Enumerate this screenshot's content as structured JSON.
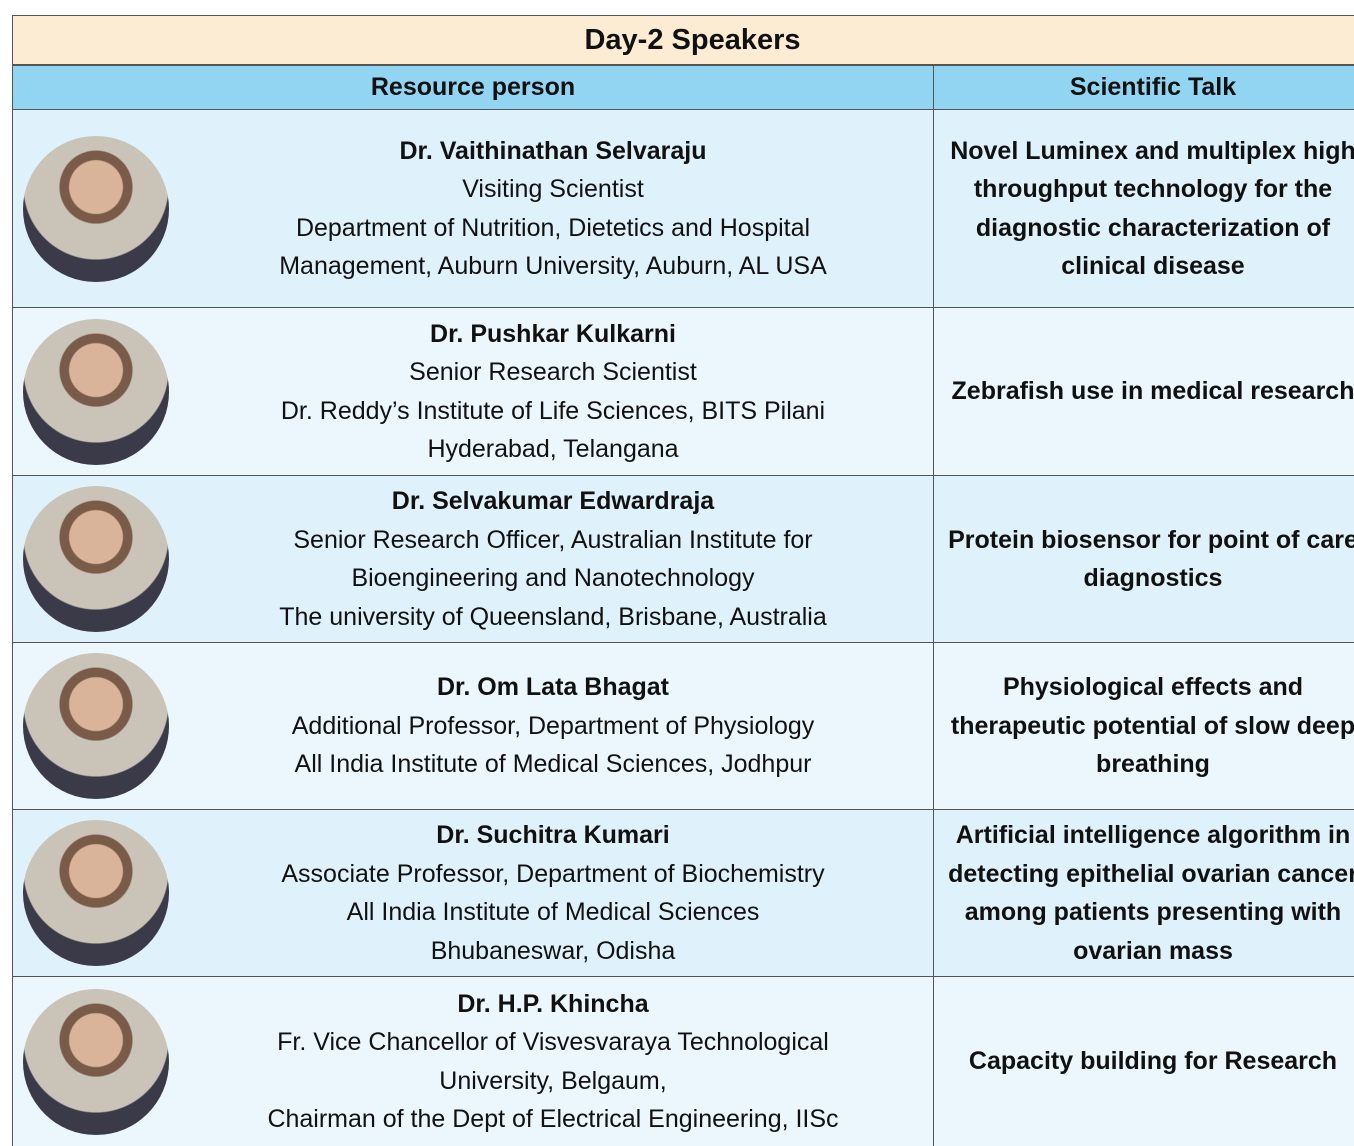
{
  "header": {
    "title": "Day-2 Speakers"
  },
  "table": {
    "columns": [
      "Resource person",
      "Scientific Talk"
    ],
    "rows": [
      {
        "name": "Dr. Vaithinathan Selvaraju",
        "lines": [
          "Visiting Scientist",
          "Department of Nutrition, Dietetics and Hospital",
          "Management, Auburn University, Auburn, AL USA"
        ],
        "talk": "Novel Luminex and multiplex high throughput technology for the diagnostic characterization of clinical disease"
      },
      {
        "name": "Dr. Pushkar Kulkarni",
        "lines": [
          "Senior Research Scientist",
          "Dr. Reddy’s Institute of Life Sciences, BITS Pilani",
          "Hyderabad, Telangana"
        ],
        "talk": "Zebrafish use in medical research"
      },
      {
        "name": "Dr. Selvakumar Edwardraja",
        "lines": [
          "Senior Research Officer, Australian Institute for",
          "Bioengineering and Nanotechnology",
          "The university of Queensland, Brisbane, Australia"
        ],
        "talk": "Protein biosensor for point of care diagnostics"
      },
      {
        "name": "Dr. Om Lata Bhagat",
        "lines": [
          "Additional Professor, Department of Physiology",
          "All India Institute of Medical Sciences, Jodhpur"
        ],
        "talk": "Physiological effects and therapeutic potential of slow deep breathing"
      },
      {
        "name": "Dr. Suchitra Kumari",
        "lines": [
          "Associate Professor, Department of Biochemistry",
          "All India Institute of Medical Sciences",
          "Bhubaneswar, Odisha"
        ],
        "talk": "Artificial intelligence algorithm in detecting epithelial ovarian cancer among patients presenting with ovarian mass"
      },
      {
        "name": "Dr. H.P. Khincha",
        "lines": [
          "Fr. Vice Chancellor of Visvesvaraya Technological",
          "University, Belgaum,",
          "Chairman of the Dept of Electrical Engineering, IISc"
        ],
        "talk": "Capacity building for Research"
      }
    ]
  }
}
